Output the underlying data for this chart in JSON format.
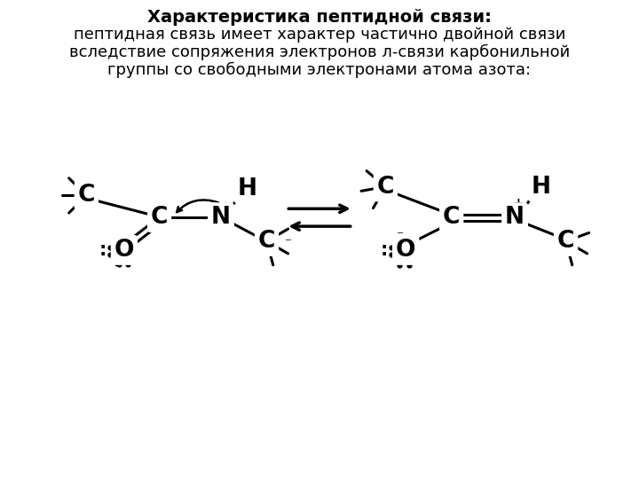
{
  "title_bold": "Характеристика пептидной связи:",
  "text_line2": "пептидная связь имеет характер частично двойной связи",
  "text_line3": "вследствие сопряжения электронов л-связи карбонильной",
  "text_line4": "группы со свободными электронами атома азота:",
  "bg_color": "#ffffff",
  "text_color": "#000000",
  "title_fontsize": 14,
  "body_fontsize": 13
}
